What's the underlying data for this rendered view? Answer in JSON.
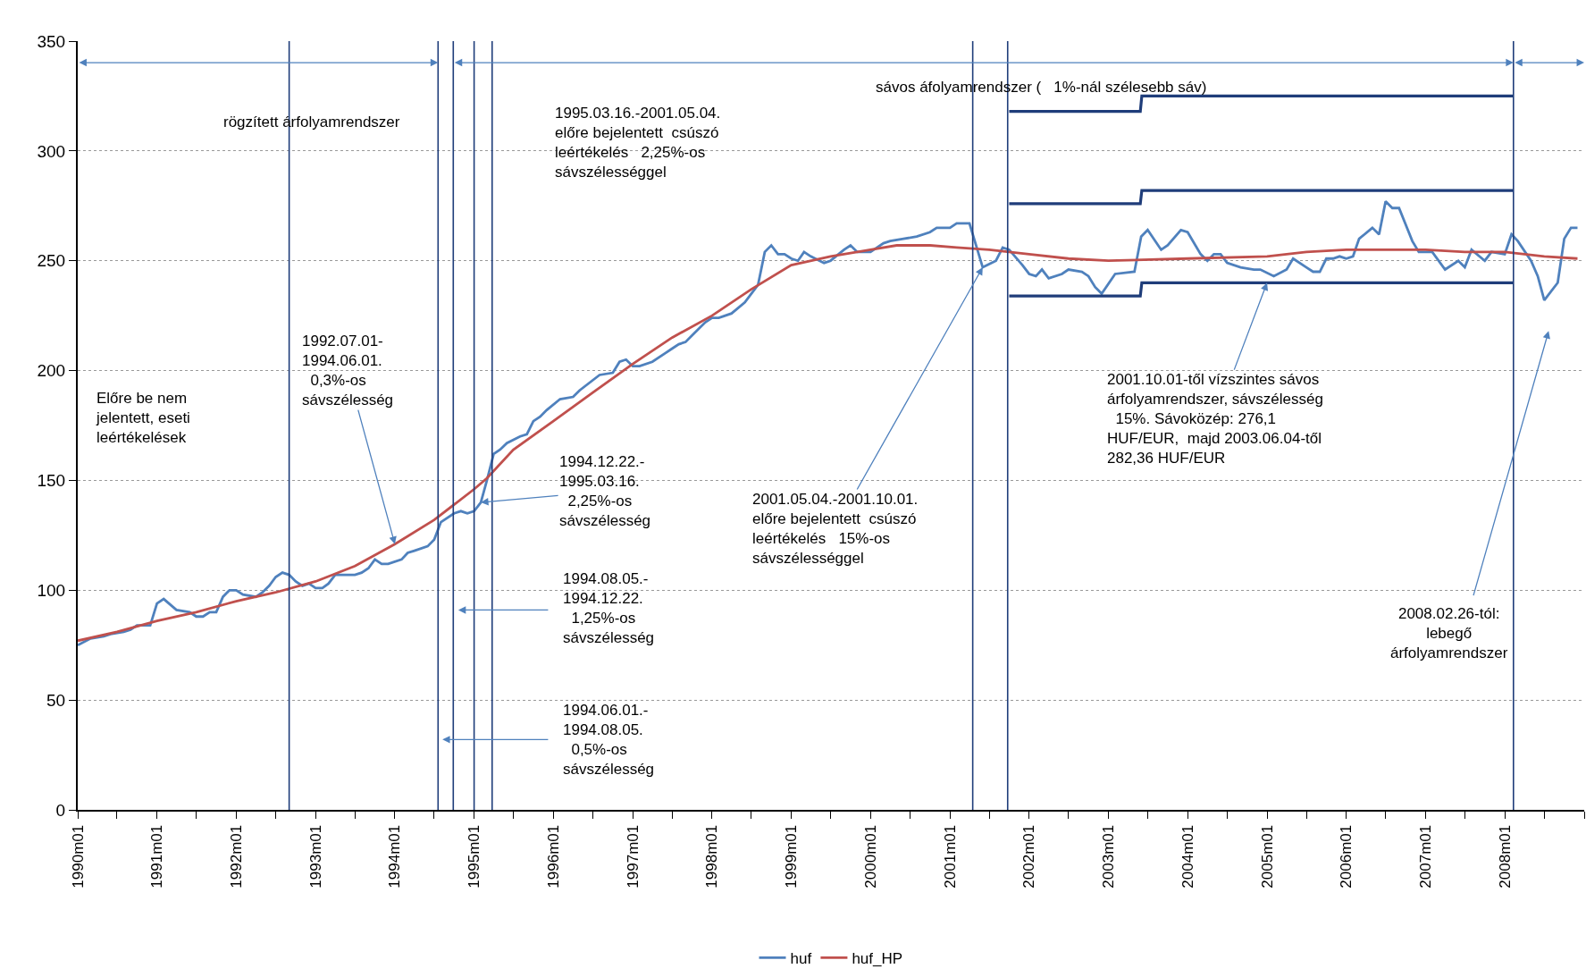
{
  "chart_data": {
    "type": "line",
    "xlim": [
      "1990-01-01",
      "2009-01-01"
    ],
    "xticks": [
      {
        "value": "1990-01",
        "label": "1990m01"
      },
      {
        "value": "1990-07",
        "label": null
      },
      {
        "value": "1991-01",
        "label": "1991m01"
      },
      {
        "value": "1991-07",
        "label": null
      },
      {
        "value": "1992-01",
        "label": "1992m01"
      },
      {
        "value": "1992-07",
        "label": null
      },
      {
        "value": "1993-01",
        "label": "1993m01"
      },
      {
        "value": "1993-07",
        "label": null
      },
      {
        "value": "1994-01",
        "label": "1994m01"
      },
      {
        "value": "1994-07",
        "label": null
      },
      {
        "value": "1995-01",
        "label": "1995m01"
      },
      {
        "value": "1995-07",
        "label": null
      },
      {
        "value": "1996-01",
        "label": "1996m01"
      },
      {
        "value": "1996-07",
        "label": null
      },
      {
        "value": "1997-01",
        "label": "1997m01"
      },
      {
        "value": "1997-07",
        "label": null
      },
      {
        "value": "1998-01",
        "label": "1998m01"
      },
      {
        "value": "1998-07",
        "label": null
      },
      {
        "value": "1999-01",
        "label": "1999m01"
      },
      {
        "value": "1999-07",
        "label": null
      },
      {
        "value": "2000-01",
        "label": "2000m01"
      },
      {
        "value": "2000-07",
        "label": null
      },
      {
        "value": "2001-01",
        "label": "2001m01"
      },
      {
        "value": "2001-07",
        "label": null
      },
      {
        "value": "2002-01",
        "label": "2002m01"
      },
      {
        "value": "2002-07",
        "label": null
      },
      {
        "value": "2003-01",
        "label": "2003m01"
      },
      {
        "value": "2003-07",
        "label": null
      },
      {
        "value": "2004-01",
        "label": "2004m01"
      },
      {
        "value": "2004-07",
        "label": null
      },
      {
        "value": "2005-01",
        "label": "2005m01"
      },
      {
        "value": "2005-07",
        "label": null
      },
      {
        "value": "2006-01",
        "label": "2006m01"
      },
      {
        "value": "2006-07",
        "label": null
      },
      {
        "value": "2007-01",
        "label": "2007m01"
      },
      {
        "value": "2007-07",
        "label": null
      },
      {
        "value": "2008-01",
        "label": "2008m01"
      },
      {
        "value": "2008-07",
        "label": null
      },
      {
        "value": "2009-01",
        "label": null
      }
    ],
    "ylim": [
      0,
      350
    ],
    "yticks": [
      0,
      50,
      100,
      150,
      200,
      250,
      300,
      350
    ],
    "grid": "y",
    "legend": "bottom",
    "marker": "none",
    "line_style": "solid",
    "series": [
      {
        "name": "huf",
        "color": "#4f81bd",
        "x": [
          "1990-01",
          "1990-03",
          "1990-05",
          "1990-06",
          "1990-08",
          "1990-09",
          "1990-10",
          "1990-12",
          "1991-01",
          "1991-02",
          "1991-04",
          "1991-06",
          "1991-07",
          "1991-08",
          "1991-09",
          "1991-10",
          "1991-11",
          "1991-12",
          "1992-01",
          "1992-02",
          "1992-04",
          "1992-05",
          "1992-06",
          "1992-07",
          "1992-08",
          "1992-09",
          "1992-10",
          "1992-11",
          "1992-12",
          "1993-01",
          "1993-02",
          "1993-03",
          "1993-04",
          "1993-07",
          "1993-08",
          "1993-09",
          "1993-10",
          "1993-11",
          "1993-12",
          "1994-02",
          "1994-03",
          "1994-04",
          "1994-06",
          "1994-07",
          "1994-08",
          "1994-10",
          "1994-11",
          "1994-12",
          "1995-01",
          "1995-02",
          "1995-03",
          "1995-04",
          "1995-05",
          "1995-06",
          "1995-08",
          "1995-09",
          "1995-10",
          "1995-11",
          "1995-12",
          "1996-02",
          "1996-04",
          "1996-05",
          "1996-08",
          "1996-10",
          "1996-11",
          "1996-12",
          "1997-01",
          "1997-02",
          "1997-04",
          "1997-06",
          "1997-07",
          "1997-08",
          "1997-09",
          "1997-10",
          "1997-12",
          "1998-01",
          "1998-02",
          "1998-04",
          "1998-06",
          "1998-07",
          "1998-08",
          "1998-09",
          "1998-10",
          "1998-11",
          "1998-12",
          "1999-01",
          "1999-02",
          "1999-03",
          "1999-04",
          "1999-06",
          "1999-07",
          "1999-09",
          "1999-10",
          "1999-11",
          "2000-01",
          "2000-03",
          "2000-04",
          "2000-06",
          "2000-08",
          "2000-10",
          "2000-11",
          "2001-01",
          "2001-02",
          "2001-04",
          "2001-06",
          "2001-08",
          "2001-09",
          "2001-10",
          "2001-12",
          "2002-01",
          "2002-02",
          "2002-03",
          "2002-04",
          "2002-06",
          "2002-07",
          "2002-09",
          "2002-10",
          "2002-11",
          "2002-12",
          "2003-02",
          "2003-05",
          "2003-06",
          "2003-07",
          "2003-09",
          "2003-10",
          "2003-12",
          "2004-01",
          "2004-03",
          "2004-04",
          "2004-05",
          "2004-06",
          "2004-07",
          "2004-09",
          "2004-11",
          "2004-12",
          "2005-02",
          "2005-04",
          "2005-05",
          "2005-07",
          "2005-08",
          "2005-09",
          "2005-10",
          "2005-11",
          "2005-12",
          "2006-01",
          "2006-02",
          "2006-03",
          "2006-05",
          "2006-06",
          "2006-07",
          "2006-08",
          "2006-09",
          "2006-11",
          "2006-12",
          "2007-02",
          "2007-04",
          "2007-06",
          "2007-07",
          "2007-08",
          "2007-10",
          "2007-11",
          "2008-01",
          "2008-02",
          "2008-03",
          "2008-05",
          "2008-06",
          "2008-07",
          "2008-09",
          "2008-10",
          "2008-11",
          "2008-12"
        ],
        "values": [
          75,
          78,
          79,
          80,
          81,
          82,
          84,
          84,
          94,
          96,
          91,
          90,
          88,
          88,
          90,
          90,
          97,
          100,
          100,
          98,
          97,
          99,
          102,
          106,
          108,
          107,
          104,
          102,
          103,
          101,
          101,
          103,
          107,
          107,
          108,
          110,
          114,
          112,
          112,
          114,
          117,
          118,
          120,
          123,
          131,
          135,
          136,
          135,
          136,
          140,
          150,
          162,
          164,
          167,
          170,
          171,
          177,
          179,
          182,
          187,
          188,
          191,
          198,
          199,
          204,
          205,
          202,
          202,
          204,
          208,
          210,
          212,
          213,
          216,
          222,
          224,
          224,
          226,
          231,
          235,
          239,
          254,
          257,
          253,
          253,
          251,
          250,
          254,
          252,
          249,
          250,
          255,
          257,
          254,
          254,
          258,
          259,
          260,
          261,
          263,
          265,
          265,
          267,
          267,
          247,
          250,
          256,
          255,
          248,
          244,
          243,
          246,
          242,
          244,
          246,
          245,
          243,
          238,
          235,
          244,
          245,
          261,
          264,
          255,
          257,
          264,
          263,
          253,
          250,
          253,
          253,
          249,
          247,
          246,
          246,
          243,
          246,
          251,
          247,
          245,
          245,
          251,
          251,
          252,
          251,
          252,
          260,
          265,
          262,
          277,
          274,
          274,
          259,
          254,
          254,
          246,
          250,
          247,
          255,
          250,
          254,
          253,
          262,
          259,
          250,
          243,
          232,
          240,
          260,
          265,
          265
        ]
      },
      {
        "name": "huf_HP",
        "color": "#c0504d",
        "x": [
          "1990-01",
          "1990-07",
          "1991-01",
          "1991-07",
          "1992-01",
          "1992-07",
          "1993-01",
          "1993-07",
          "1994-01",
          "1994-07",
          "1995-01",
          "1995-03",
          "1995-07",
          "1996-01",
          "1996-07",
          "1997-01",
          "1997-07",
          "1998-01",
          "1998-07",
          "1999-01",
          "1999-07",
          "2000-01",
          "2000-05",
          "2000-10",
          "2001-02",
          "2001-07",
          "2002-01",
          "2002-07",
          "2003-01",
          "2004-01",
          "2005-01",
          "2005-07",
          "2006-01",
          "2007-01",
          "2007-07",
          "2008-01",
          "2008-07",
          "2008-12"
        ],
        "values": [
          77,
          81,
          86,
          90,
          95,
          99,
          104,
          111,
          121,
          132,
          146,
          151,
          164,
          177,
          190,
          203,
          215,
          225,
          237,
          248,
          252,
          255,
          257,
          257,
          256,
          255,
          253,
          251,
          250,
          251,
          252,
          254,
          255,
          255,
          254,
          254,
          252,
          251
        ]
      },
      {
        "color": "#1f3d7a",
        "x": [
          "2001-10-01",
          "2003-05-28",
          "2003-06-04",
          "2008-02-10"
        ],
        "values": [
          318,
          318,
          325,
          325
        ]
      },
      {
        "color": "#1f3d7a",
        "x": [
          "2001-10-01",
          "2003-05-28",
          "2003-06-04",
          "2008-02-10"
        ],
        "values": [
          276,
          276,
          282,
          282
        ]
      },
      {
        "color": "#1f3d7a",
        "x": [
          "2001-10-01",
          "2003-05-28",
          "2003-06-04",
          "2008-02-10"
        ],
        "values": [
          234,
          234,
          240,
          240
        ]
      }
    ],
    "ref_lines": [
      {
        "axis": "x",
        "value": "1992-09-01",
        "color": "#1f3d7a"
      },
      {
        "axis": "x",
        "value": "1994-07-19",
        "color": "#1f3d7a"
      },
      {
        "axis": "x",
        "value": "1994-09-27",
        "color": "#1f3d7a"
      },
      {
        "axis": "x",
        "value": "1995-01-01",
        "color": "#1f3d7a"
      },
      {
        "axis": "x",
        "value": "1995-03-25",
        "color": "#1f3d7a"
      },
      {
        "axis": "x",
        "value": "2001-04-16",
        "color": "#1f3d7a"
      },
      {
        "axis": "x",
        "value": "2001-09-24",
        "color": "#1f3d7a"
      },
      {
        "axis": "x",
        "value": "2008-02-10",
        "color": "#1f3d7a"
      }
    ],
    "annotations": [
      "rögzített árfolyamrendszer",
      "sávos áfolyamrendszer (   1%-nál szélesebb sáv)",
      "1995.03.16.-2001.05.04.\nelőre bejelentett  csúszó\nleértékelés   2,25%-os\nsávszélességgel",
      {
        "text": "1992.07.01-\n1994.06.01.\n  0,3%-os\nsávszélesség",
        "x": "1994-01",
        "y": 121
      },
      "Előre be nem\njelentett, eseti\nleértékelések",
      {
        "text": "1994.12.22.-\n1995.03.16.\n  2,25%-os\nsávszélesség",
        "x": "1995-02",
        "y": 140
      },
      "1994.08.05.-\n1994.12.22.\n  1,25%-os\nsávszélesség",
      "1994.06.01.-\n1994.08.05.\n  0,5%-os\nsávszélesség",
      {
        "text": "2001.05.04.-2001.10.01.\nelőre bejelentett  csúszó\nleértékelés   15%-os\nsávszélességgel",
        "x": "2001-06",
        "y": 247
      },
      {
        "text": "2001.10.01-től vízszintes sávos\nárfolyamrendszer, sávszélesség\n  15%. Sávoközép: 276,1\nHUF/EUR,  majd 2003.06.04-től\n282,36 HUF/EUR",
        "x": "2005-01",
        "y": 240
      },
      "2008.02.26-tól:\nlebegő\nárfolyamrendszer"
    ]
  }
}
